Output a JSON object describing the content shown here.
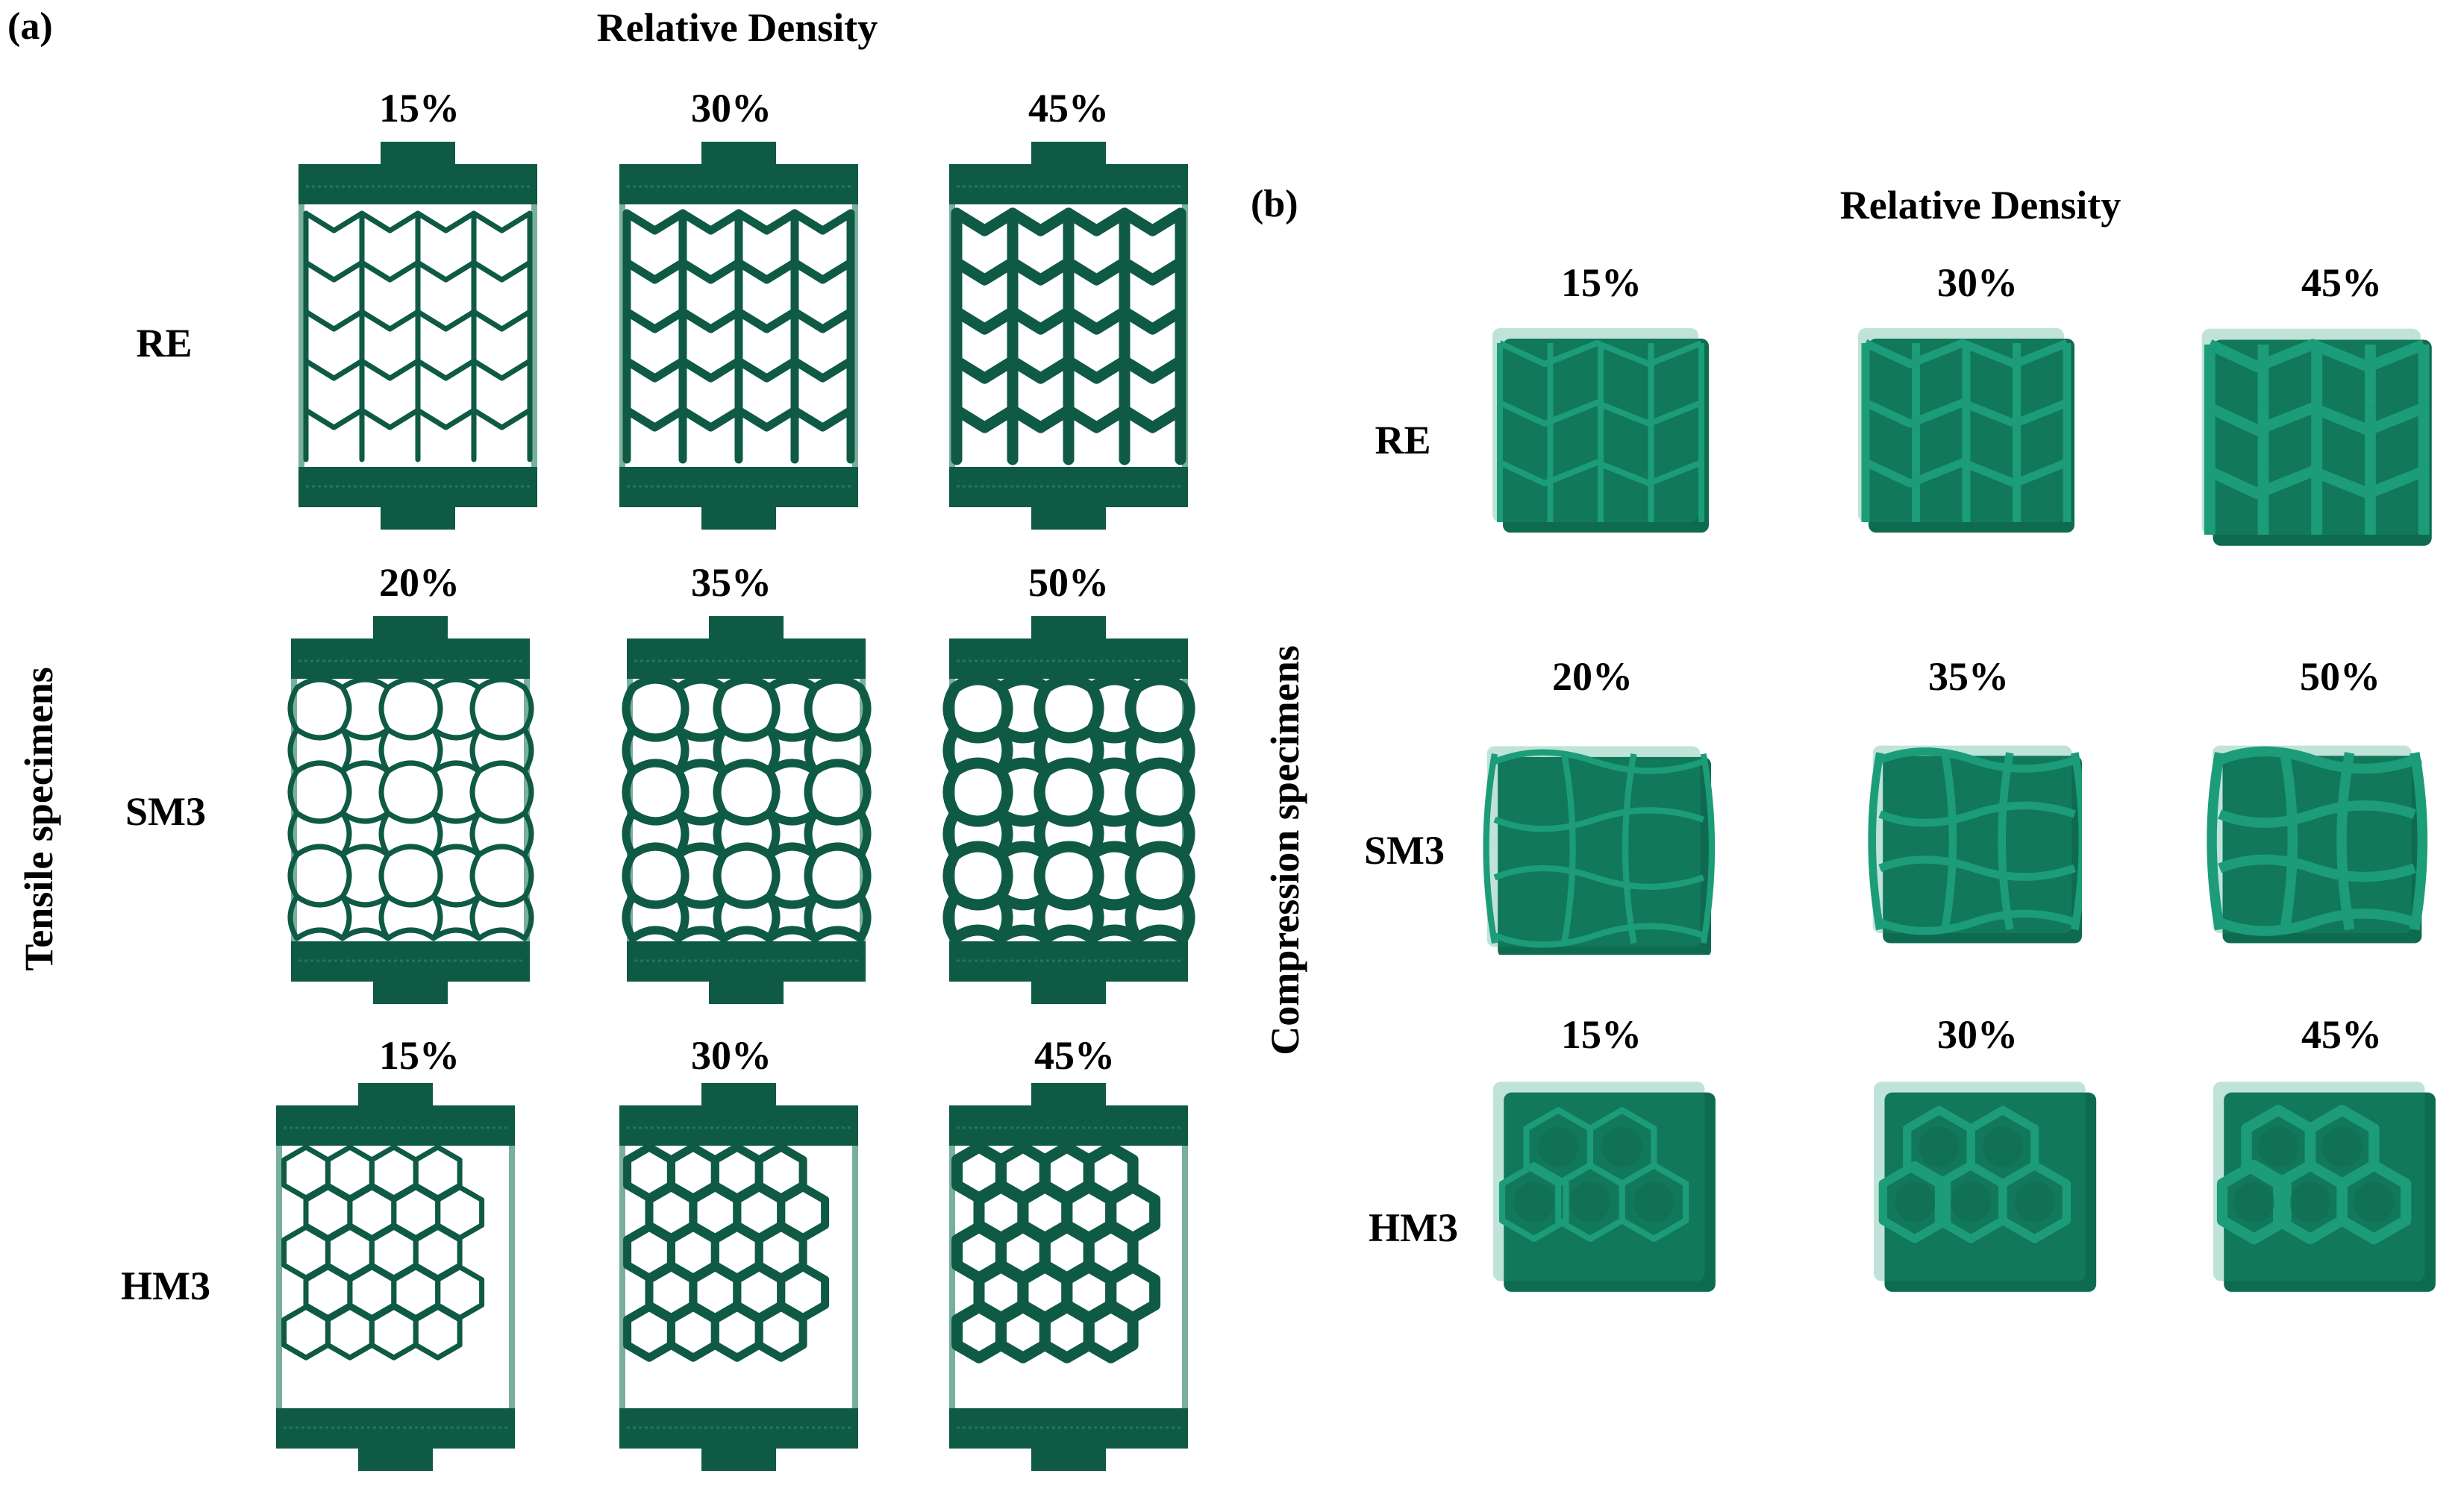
{
  "panel_a": {
    "label": "(a)",
    "title": "Relative Density",
    "axis_label": "Tensile specimens",
    "rows": [
      {
        "name": "RE",
        "densities": [
          "15%",
          "30%",
          "45%"
        ]
      },
      {
        "name": "SM3",
        "densities": [
          "20%",
          "35%",
          "50%"
        ]
      },
      {
        "name": "HM3",
        "densities": [
          "15%",
          "30%",
          "45%"
        ]
      }
    ]
  },
  "panel_b": {
    "label": "(b)",
    "title": "Relative Density",
    "axis_label": "Compression specimens",
    "rows": [
      {
        "name": "RE",
        "densities": [
          "15%",
          "30%",
          "45%"
        ]
      },
      {
        "name": "SM3",
        "densities": [
          "20%",
          "35%",
          "50%"
        ]
      },
      {
        "name": "HM3",
        "densities": [
          "15%",
          "30%",
          "45%"
        ]
      }
    ]
  },
  "colors": {
    "tensile_green": "#0f5a45",
    "tensile_green_light": "#1f7a5c",
    "compression_green": "#1c9c78",
    "compression_green_dark": "#0e6b50"
  }
}
